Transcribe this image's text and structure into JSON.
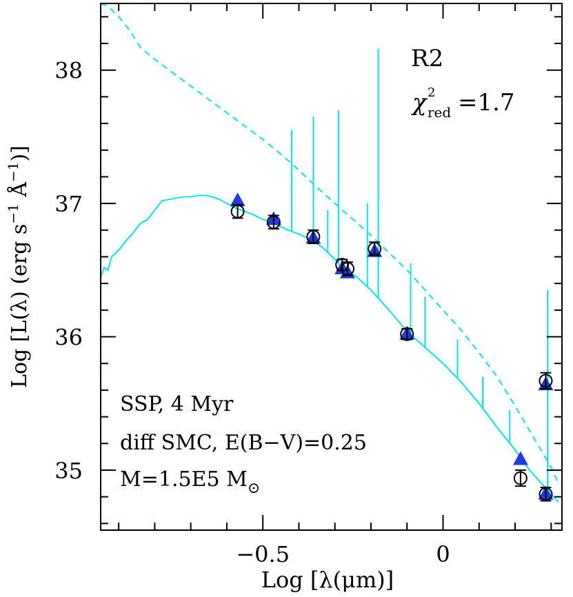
{
  "chart_data": {
    "type": "scatter",
    "xlabel_prefix": "Log ",
    "xlabel_main": "[λ(μm)]",
    "ylabel_prefix": "Log ",
    "ylabel_main": "[L(λ) (erg s",
    "ylabel_exp1": "−1",
    "ylabel_mid": " Å",
    "ylabel_exp2": "−1",
    "ylabel_end": ")]",
    "xlim": [
      -0.95,
      0.33
    ],
    "ylim": [
      34.55,
      38.5
    ],
    "x_major_ticks": [
      -0.5,
      0
    ],
    "x_tick_labels": [
      "−0.5",
      "0"
    ],
    "y_major_ticks": [
      35,
      36,
      37,
      38
    ],
    "y_tick_labels": [
      "35",
      "36",
      "37",
      "38"
    ],
    "region": "R2",
    "chi_label": "χ",
    "chi_sup": "2",
    "chi_sub": "red",
    "chi_value": "=1.7",
    "model_line1": "SSP, 4 Myr",
    "model_line2": "diff SMC, E(B−V)=0.25",
    "model_line3_prefix": "M=1.5E5 M",
    "model_line3_symbol": "⊙",
    "colors": {
      "model": "#00e8f0",
      "synthetic": "#1e3ae0",
      "axes": "#000000"
    },
    "observed": [
      {
        "x": -0.57,
        "y": 36.94,
        "err": 0.05
      },
      {
        "x": -0.47,
        "y": 36.86,
        "err": 0.05
      },
      {
        "x": -0.36,
        "y": 36.75,
        "err": 0.05
      },
      {
        "x": -0.28,
        "y": 36.54,
        "err": 0.04
      },
      {
        "x": -0.265,
        "y": 36.51,
        "err": 0.05
      },
      {
        "x": -0.19,
        "y": 36.66,
        "err": 0.05
      },
      {
        "x": -0.1,
        "y": 36.02,
        "err": 0.04
      },
      {
        "x": 0.215,
        "y": 34.94,
        "err": 0.06
      },
      {
        "x": 0.285,
        "y": 35.67,
        "err": 0.06
      },
      {
        "x": 0.285,
        "y": 34.82,
        "err": 0.05
      }
    ],
    "model_points": [
      {
        "x": -0.57,
        "y": 37.02
      },
      {
        "x": -0.47,
        "y": 36.88
      },
      {
        "x": -0.36,
        "y": 36.74
      },
      {
        "x": -0.28,
        "y": 36.51
      },
      {
        "x": -0.265,
        "y": 36.48
      },
      {
        "x": -0.19,
        "y": 36.64
      },
      {
        "x": -0.1,
        "y": 36.02
      },
      {
        "x": 0.215,
        "y": 35.08
      },
      {
        "x": 0.285,
        "y": 35.64
      },
      {
        "x": 0.285,
        "y": 34.82
      }
    ],
    "attenuated_spectrum": [
      [
        -0.95,
        36.45
      ],
      [
        -0.94,
        36.52
      ],
      [
        -0.93,
        36.5
      ],
      [
        -0.92,
        36.6
      ],
      [
        -0.9,
        36.65
      ],
      [
        -0.88,
        36.72
      ],
      [
        -0.86,
        36.78
      ],
      [
        -0.84,
        36.85
      ],
      [
        -0.82,
        36.88
      ],
      [
        -0.8,
        36.95
      ],
      [
        -0.78,
        37.02
      ],
      [
        -0.76,
        37.03
      ],
      [
        -0.74,
        37.04
      ],
      [
        -0.72,
        37.05
      ],
      [
        -0.7,
        37.05
      ],
      [
        -0.68,
        37.06
      ],
      [
        -0.66,
        37.06
      ],
      [
        -0.64,
        37.05
      ],
      [
        -0.62,
        37.03
      ],
      [
        -0.6,
        37.0
      ],
      [
        -0.57,
        36.96
      ],
      [
        -0.53,
        36.92
      ],
      [
        -0.5,
        36.88
      ],
      [
        -0.47,
        36.85
      ],
      [
        -0.43,
        36.8
      ],
      [
        -0.4,
        36.77
      ],
      [
        -0.36,
        36.72
      ],
      [
        -0.33,
        36.66
      ],
      [
        -0.3,
        36.58
      ],
      [
        -0.28,
        36.52
      ],
      [
        -0.265,
        36.49
      ],
      [
        -0.24,
        36.45
      ],
      [
        -0.2,
        36.35
      ],
      [
        -0.15,
        36.2
      ],
      [
        -0.1,
        36.04
      ],
      [
        -0.05,
        35.92
      ],
      [
        0.0,
        35.8
      ],
      [
        0.05,
        35.66
      ],
      [
        0.1,
        35.5
      ],
      [
        0.15,
        35.32
      ],
      [
        0.2,
        35.15
      ],
      [
        0.24,
        35.0
      ],
      [
        0.28,
        34.88
      ],
      [
        0.3,
        34.82
      ],
      [
        0.32,
        34.76
      ]
    ],
    "intrinsic_spectrum": [
      [
        -0.95,
        38.5
      ],
      [
        -0.93,
        38.48
      ],
      [
        -0.9,
        38.4
      ],
      [
        -0.87,
        38.3
      ],
      [
        -0.84,
        38.17
      ],
      [
        -0.8,
        38.08
      ],
      [
        -0.75,
        37.98
      ],
      [
        -0.7,
        37.88
      ],
      [
        -0.65,
        37.78
      ],
      [
        -0.6,
        37.68
      ],
      [
        -0.55,
        37.58
      ],
      [
        -0.5,
        37.48
      ],
      [
        -0.45,
        37.37
      ],
      [
        -0.4,
        37.25
      ],
      [
        -0.35,
        37.12
      ],
      [
        -0.3,
        37.0
      ],
      [
        -0.25,
        36.88
      ],
      [
        -0.2,
        36.76
      ],
      [
        -0.15,
        36.63
      ],
      [
        -0.1,
        36.5
      ],
      [
        -0.05,
        36.35
      ],
      [
        0.0,
        36.2
      ],
      [
        0.05,
        36.05
      ],
      [
        0.1,
        35.88
      ],
      [
        0.15,
        35.7
      ],
      [
        0.2,
        35.48
      ],
      [
        0.25,
        35.25
      ],
      [
        0.3,
        35.02
      ],
      [
        0.32,
        34.9
      ]
    ],
    "emission_lines": [
      [
        -0.42,
        37.55
      ],
      [
        -0.36,
        37.65
      ],
      [
        -0.32,
        36.95
      ],
      [
        -0.29,
        37.7
      ],
      [
        -0.21,
        37.0
      ],
      [
        -0.18,
        38.16
      ],
      [
        -0.09,
        36.55
      ],
      [
        -0.05,
        36.3
      ],
      [
        0.04,
        35.98
      ],
      [
        0.11,
        35.7
      ],
      [
        0.185,
        35.45
      ],
      [
        0.29,
        36.35
      ]
    ]
  }
}
